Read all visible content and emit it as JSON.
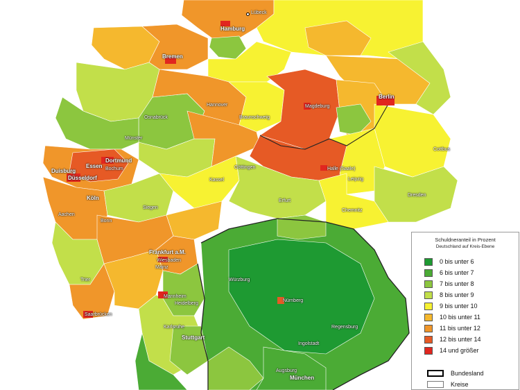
{
  "legend": {
    "title": "Schuldneranteil in Prozent",
    "subtitle": "Deutschland auf Kreis-Ebene",
    "classes": [
      {
        "label": "0 bis unter 6",
        "color": "#1e9a32"
      },
      {
        "label": "6 bis unter 7",
        "color": "#4bab35"
      },
      {
        "label": "7 bis unter 8",
        "color": "#8cc63f"
      },
      {
        "label": "8 bis unter 9",
        "color": "#c2df4a"
      },
      {
        "label": "9 bis unter 10",
        "color": "#f7f232"
      },
      {
        "label": "10 bis unter 11",
        "color": "#f5b82e"
      },
      {
        "label": "11 bis unter 12",
        "color": "#f0962a"
      },
      {
        "label": "12 bis unter 14",
        "color": "#e65a25"
      },
      {
        "label": "14 und größer",
        "color": "#e1261f"
      }
    ],
    "outline_bundesland": "Bundesland",
    "outline_kreise": "Kreise"
  },
  "cities": {
    "luebeck": "Lübeck",
    "hamburg": "Hamburg",
    "bremen": "Bremen",
    "berlin": "Berlin",
    "hannover": "Hannover",
    "braunschweig": "Braunschweig",
    "magdeburg": "Magdeburg",
    "osnabrueck": "Osnabrück",
    "muenster": "Münster",
    "cottbus": "Cottbus",
    "dortmund": "Dortmund",
    "essen": "Essen",
    "bochum": "Bochum",
    "duisburg": "Duisburg",
    "duesseldorf": "Düsseldorf",
    "goettingen": "Göttingen",
    "halle": "Halle (Saale)",
    "leipzig": "Leipzig",
    "kassel": "Kassel",
    "koeln": "Köln",
    "dresden": "Dresden",
    "siegen": "Siegen",
    "erfurt": "Erfurt",
    "chemnitz": "Chemnitz",
    "aachen": "Aachen",
    "bonn": "Bonn",
    "frankfurt": "Frankfurt a.M.",
    "wiesbaden": "Wiesbaden",
    "mainz": "Mainz",
    "trier": "Trier",
    "wuerzburg": "Würzburg",
    "mannheim": "Mannheim",
    "heidelberg": "Heidelberg",
    "nuernberg": "Nürnberg",
    "saarbruecken": "Saarbrücken",
    "regensburg": "Regensburg",
    "karlsruhe": "Karlsruhe",
    "stuttgart": "Stuttgart",
    "ingolstadt": "Ingolstadt",
    "augsburg": "Augsburg",
    "muenchen": "München"
  }
}
